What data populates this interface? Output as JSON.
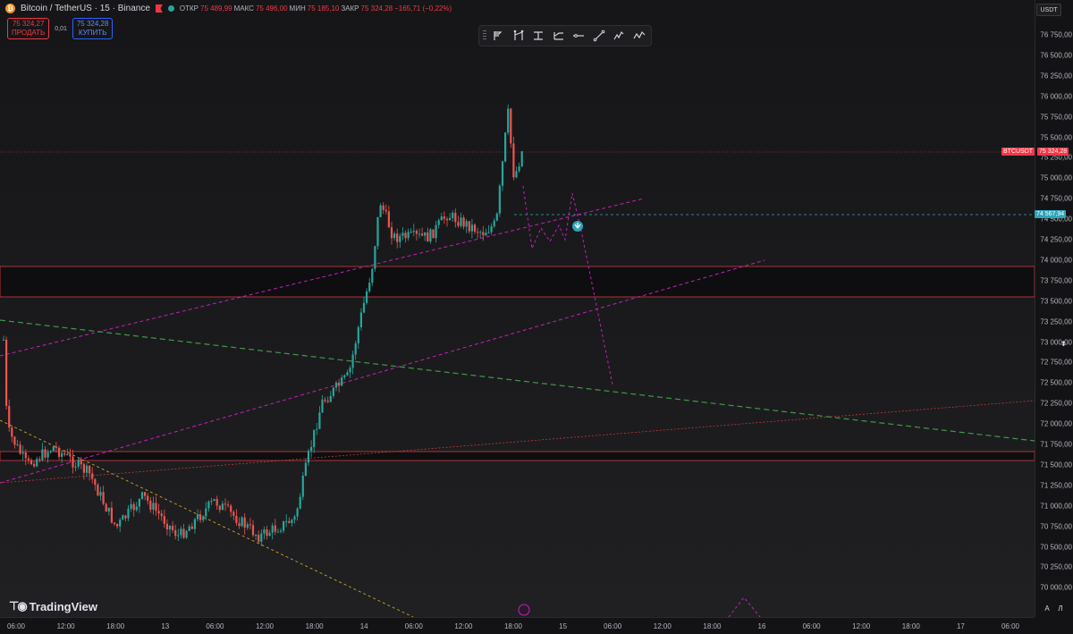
{
  "header": {
    "symbol": "Bitcoin / TetherUS · 15 · Binance",
    "ohlc": [
      {
        "label": "ОТКР",
        "value": "75 489,99"
      },
      {
        "label": "МАКС",
        "value": "75 496,00"
      },
      {
        "label": "МИН",
        "value": "75 185,10"
      },
      {
        "label": "ЗАКР",
        "value": "75 324,28"
      },
      {
        "label": "",
        "value": "−165,71 (−0,22%)"
      }
    ]
  },
  "trade": {
    "sell_price": "75 324,27",
    "sell_label": "ПРОДАТЬ",
    "spread": "0,01",
    "buy_price": "75 324,28",
    "buy_label": "КУПИТЬ"
  },
  "toolbar": {
    "tools": [
      "fib-tool-icon",
      "pitchfork-icon",
      "fib-channel-icon",
      "horizontal-ray-icon",
      "trend-line-icon",
      "elliott-wave-icon",
      "zigzag-icon"
    ]
  },
  "currency": "USDT",
  "price_axis": {
    "ticks": [
      "76 750,00",
      "76 500,00",
      "76 250,00",
      "76 000,00",
      "75 750,00",
      "75 500,00",
      "75 250,00",
      "75 000,00",
      "74 750,00",
      "74 500,00",
      "74 250,00",
      "74 000,00",
      "73 750,00",
      "73 500,00",
      "73 250,00",
      "73 000,00",
      "72 750,00",
      "72 500,00",
      "72 250,00",
      "72 000,00",
      "71 750,00",
      "71 500,00",
      "71 250,00",
      "71 000,00",
      "70 750,00",
      "70 500,00",
      "70 250,00",
      "70 000,00"
    ],
    "symbol_badge": "BTCUSDT",
    "last_price_badge": "75 324,28",
    "level_badge": "74 567,94"
  },
  "time_axis": {
    "labels": [
      "06:00",
      "12:00",
      "18:00",
      "13",
      "06:00",
      "12:00",
      "18:00",
      "14",
      "06:00",
      "12:00",
      "18:00",
      "15",
      "06:00",
      "12:00",
      "18:00",
      "16",
      "06:00",
      "12:00",
      "18:00",
      "17",
      "06:00"
    ]
  },
  "logo": "TradingView",
  "scale_buttons": [
    "A",
    "Л"
  ],
  "colors": {
    "up": "#26a69a",
    "down": "#ef5350",
    "trend_magenta": "#c41fb8",
    "trend_green": "#3f9a4a",
    "trend_orange": "#c8a42a",
    "zone_red": "#d23c3c",
    "level_cyan": "#2fa5b8",
    "accent_red": "#f23645"
  }
}
